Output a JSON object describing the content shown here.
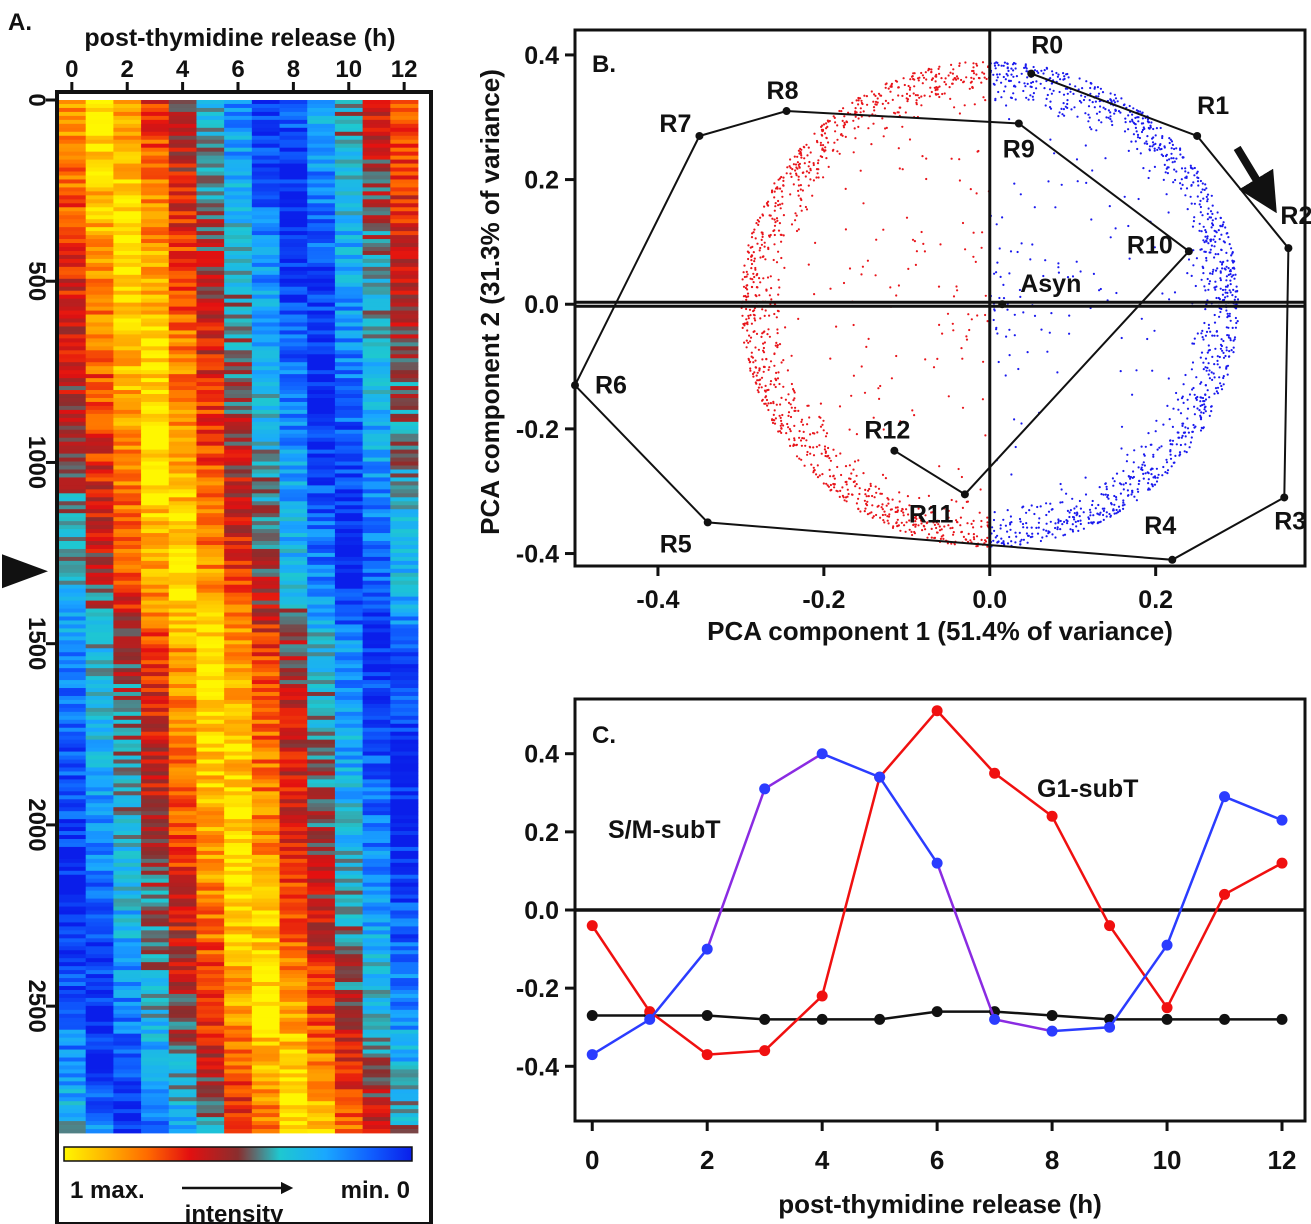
{
  "colors": {
    "heatmap_scale": [
      "#fff700",
      "#ffb400",
      "#ff6a00",
      "#e31010",
      "#8a2e2e",
      "#1ec8d0",
      "#1aa8ff",
      "#1060ff",
      "#0a1eea"
    ],
    "g1_points": "#e8151b",
    "sm_points": "#1a1aee",
    "g1_line": "#f01010",
    "sm_line_a": "#2b3cff",
    "sm_line_b": "#8a2be2",
    "black": "#111111"
  },
  "panelA": {
    "label": "A.",
    "x_axis_title": "post-thymidine release (h)",
    "x_ticks": [
      "0",
      "2",
      "4",
      "6",
      "8",
      "10",
      "12"
    ],
    "y_ticks": [
      "0",
      "500",
      "1000",
      "1500",
      "2000",
      "2500"
    ],
    "y_max": 2850,
    "colorbar_left": "1 max.",
    "colorbar_right": "min. 0",
    "colorbar_title": "intensity",
    "marker_row": 1300,
    "peak_columns": {
      "rows": [
        0,
        500,
        1000,
        1350,
        1500,
        2000,
        2500,
        2850
      ],
      "col": [
        1,
        2.2,
        3.2,
        4.0,
        5.0,
        5.8,
        7.0,
        8.5
      ]
    }
  },
  "panelB": {
    "label": "B.",
    "x_axis_title": "PCA component 1 (51.4% of variance)",
    "y_axis_title": "PCA component 2 (31.3% of variance)",
    "x_ticks": [
      "-0.4",
      "-0.2",
      "0.0",
      "0.2"
    ],
    "y_ticks": [
      "0.4",
      "0.2",
      "0.0",
      "-0.2",
      "-0.4"
    ],
    "xlim": [
      -0.5,
      0.38
    ],
    "ylim": [
      -0.42,
      0.44
    ],
    "arrow_direction": "R1 to R2",
    "cloud": {
      "center": [
        0.0,
        0.0
      ],
      "radius": 0.3,
      "count": 2400
    },
    "samples": [
      {
        "label": "R0",
        "x": 0.05,
        "y": 0.37
      },
      {
        "label": "R1",
        "x": 0.25,
        "y": 0.27
      },
      {
        "label": "R2",
        "x": 0.36,
        "y": 0.09
      },
      {
        "label": "R3",
        "x": 0.355,
        "y": -0.31
      },
      {
        "label": "R4",
        "x": 0.22,
        "y": -0.41
      },
      {
        "label": "R5",
        "x": -0.34,
        "y": -0.35
      },
      {
        "label": "R6",
        "x": -0.5,
        "y": -0.13
      },
      {
        "label": "R7",
        "x": -0.35,
        "y": 0.27
      },
      {
        "label": "R8",
        "x": -0.245,
        "y": 0.31
      },
      {
        "label": "R9",
        "x": 0.035,
        "y": 0.29
      },
      {
        "label": "R10",
        "x": 0.24,
        "y": 0.085
      },
      {
        "label": "R11",
        "x": -0.03,
        "y": -0.305
      },
      {
        "label": "R12",
        "x": -0.115,
        "y": -0.235
      },
      {
        "label": "Asyn",
        "x": 0.015,
        "y": 0.0
      }
    ]
  },
  "panelC": {
    "label": "C.",
    "x_axis_title": "post-thymidine release (h)",
    "x_ticks": [
      "0",
      "2",
      "4",
      "6",
      "8",
      "10",
      "12"
    ],
    "y_ticks": [
      "0.4",
      "0.2",
      "0.0",
      "-0.2",
      "-0.4"
    ],
    "sm_label": "S/M-subT",
    "g1_label": "G1-subT"
  },
  "chart_data": [
    {
      "type": "heatmap",
      "panel": "A",
      "title": "",
      "xlabel": "post-thymidine release (h)",
      "ylabel": "",
      "x": [
        0,
        1,
        2,
        3,
        4,
        5,
        6,
        7,
        8,
        9,
        10,
        11,
        12
      ],
      "ylim": [
        0,
        2850
      ],
      "colorbar": {
        "label": "intensity",
        "min_label": "min. 0",
        "max_label": "1 max."
      }
    },
    {
      "type": "scatter",
      "panel": "B",
      "xlabel": "PCA component 1 (51.4% of variance)",
      "ylabel": "PCA component 2 (31.3% of variance)",
      "xlim": [
        -0.5,
        0.38
      ],
      "ylim": [
        -0.42,
        0.44
      ],
      "series": [
        {
          "labels": [
            "R0",
            "R1",
            "R2",
            "R3",
            "R4",
            "R5",
            "R6",
            "R7",
            "R8",
            "R9",
            "R10",
            "R11",
            "R12",
            "Asyn"
          ],
          "x": [
            0.05,
            0.25,
            0.36,
            0.355,
            0.22,
            -0.34,
            -0.5,
            -0.35,
            -0.245,
            0.035,
            0.24,
            -0.03,
            -0.115,
            0.015
          ],
          "y": [
            0.37,
            0.27,
            0.09,
            -0.31,
            -0.41,
            -0.35,
            -0.13,
            0.27,
            0.31,
            0.29,
            0.085,
            -0.305,
            -0.235,
            0.0
          ]
        }
      ]
    },
    {
      "type": "line",
      "panel": "C",
      "xlabel": "post-thymidine release (h)",
      "ylabel": "",
      "xlim": [
        -0.3,
        12.4
      ],
      "ylim": [
        -0.54,
        0.54
      ],
      "x": [
        0,
        1,
        2,
        3,
        4,
        5,
        6,
        7,
        8,
        9,
        10,
        11,
        12
      ],
      "series": [
        {
          "name": "S/M-subT",
          "values": [
            -0.37,
            -0.28,
            -0.1,
            0.31,
            0.4,
            0.34,
            0.12,
            -0.28,
            -0.31,
            -0.3,
            -0.09,
            0.29,
            0.23
          ]
        },
        {
          "name": "G1-subT",
          "values": [
            -0.04,
            -0.26,
            -0.37,
            -0.36,
            -0.22,
            0.34,
            0.51,
            0.35,
            0.24,
            -0.04,
            -0.25,
            0.04,
            0.12
          ]
        },
        {
          "values": [
            -0.27,
            -0.27,
            -0.27,
            -0.28,
            -0.28,
            -0.28,
            -0.26,
            -0.26,
            -0.27,
            -0.28,
            -0.28,
            -0.28,
            -0.28
          ]
        }
      ]
    }
  ]
}
